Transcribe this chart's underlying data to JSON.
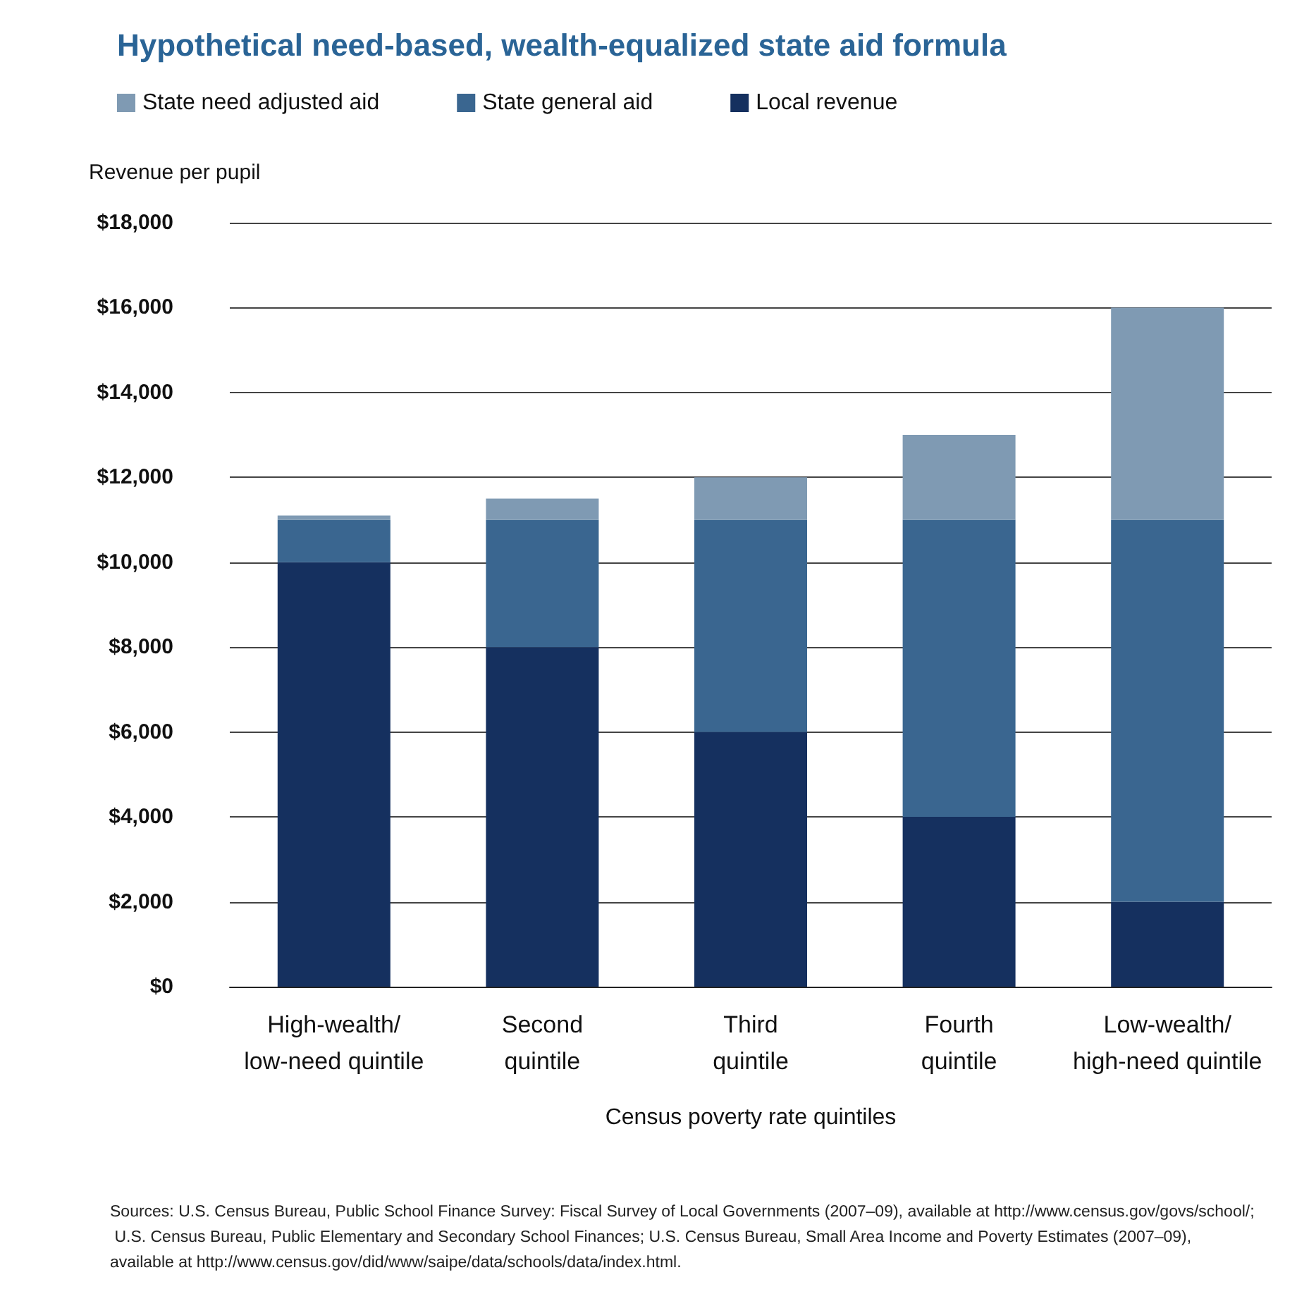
{
  "chart_data": {
    "type": "bar",
    "stacked": true,
    "title": "Hypothetical need-based, wealth-equalized state aid formula",
    "ylabel": "Revenue per pupil",
    "xlabel": "Census poverty rate quintiles",
    "categories": [
      "High-wealth/\nlow-need quintile",
      "Second\nquintile",
      "Third\nquintile",
      "Fourth\nquintile",
      "Low-wealth/\nhigh-need quintile"
    ],
    "series": [
      {
        "name": "Local revenue",
        "color": "#15305f",
        "values": [
          10000,
          8000,
          6000,
          4000,
          2000
        ]
      },
      {
        "name": "State general aid",
        "color": "#3a6690",
        "values": [
          1000,
          3000,
          5000,
          7000,
          9000
        ]
      },
      {
        "name": "State need adjusted aid",
        "color": "#7f9ab3",
        "values": [
          100,
          500,
          1000,
          2000,
          5000
        ]
      }
    ],
    "ylim": [
      0,
      18000
    ],
    "yticks": [
      {
        "value": 0,
        "label": "$0"
      },
      {
        "value": 2000,
        "label": "$2,000"
      },
      {
        "value": 4000,
        "label": "$4,000"
      },
      {
        "value": 6000,
        "label": "$6,000"
      },
      {
        "value": 8000,
        "label": "$8,000"
      },
      {
        "value": 10000,
        "label": "$10,000"
      },
      {
        "value": 12000,
        "label": "$12,000"
      },
      {
        "value": 14000,
        "label": "$14,000"
      },
      {
        "value": 16000,
        "label": "$16,000"
      },
      {
        "value": 18000,
        "label": "$18,000"
      }
    ],
    "grid": "y",
    "legend": "top left",
    "annotations": [
      "Sources: U.S. Census Bureau, Public School Finance Survey: Fiscal Survey of Local Governments (2007–09), available at http://www.census.gov/govs/school/; U.S. Census Bureau, Public Elementary and Secondary School Finances; U.S. Census Bureau, Small Area Income and Poverty Estimates (2007–09), available at http://www.census.gov/did/www/saipe/data/schools/data/index.html."
    ]
  }
}
